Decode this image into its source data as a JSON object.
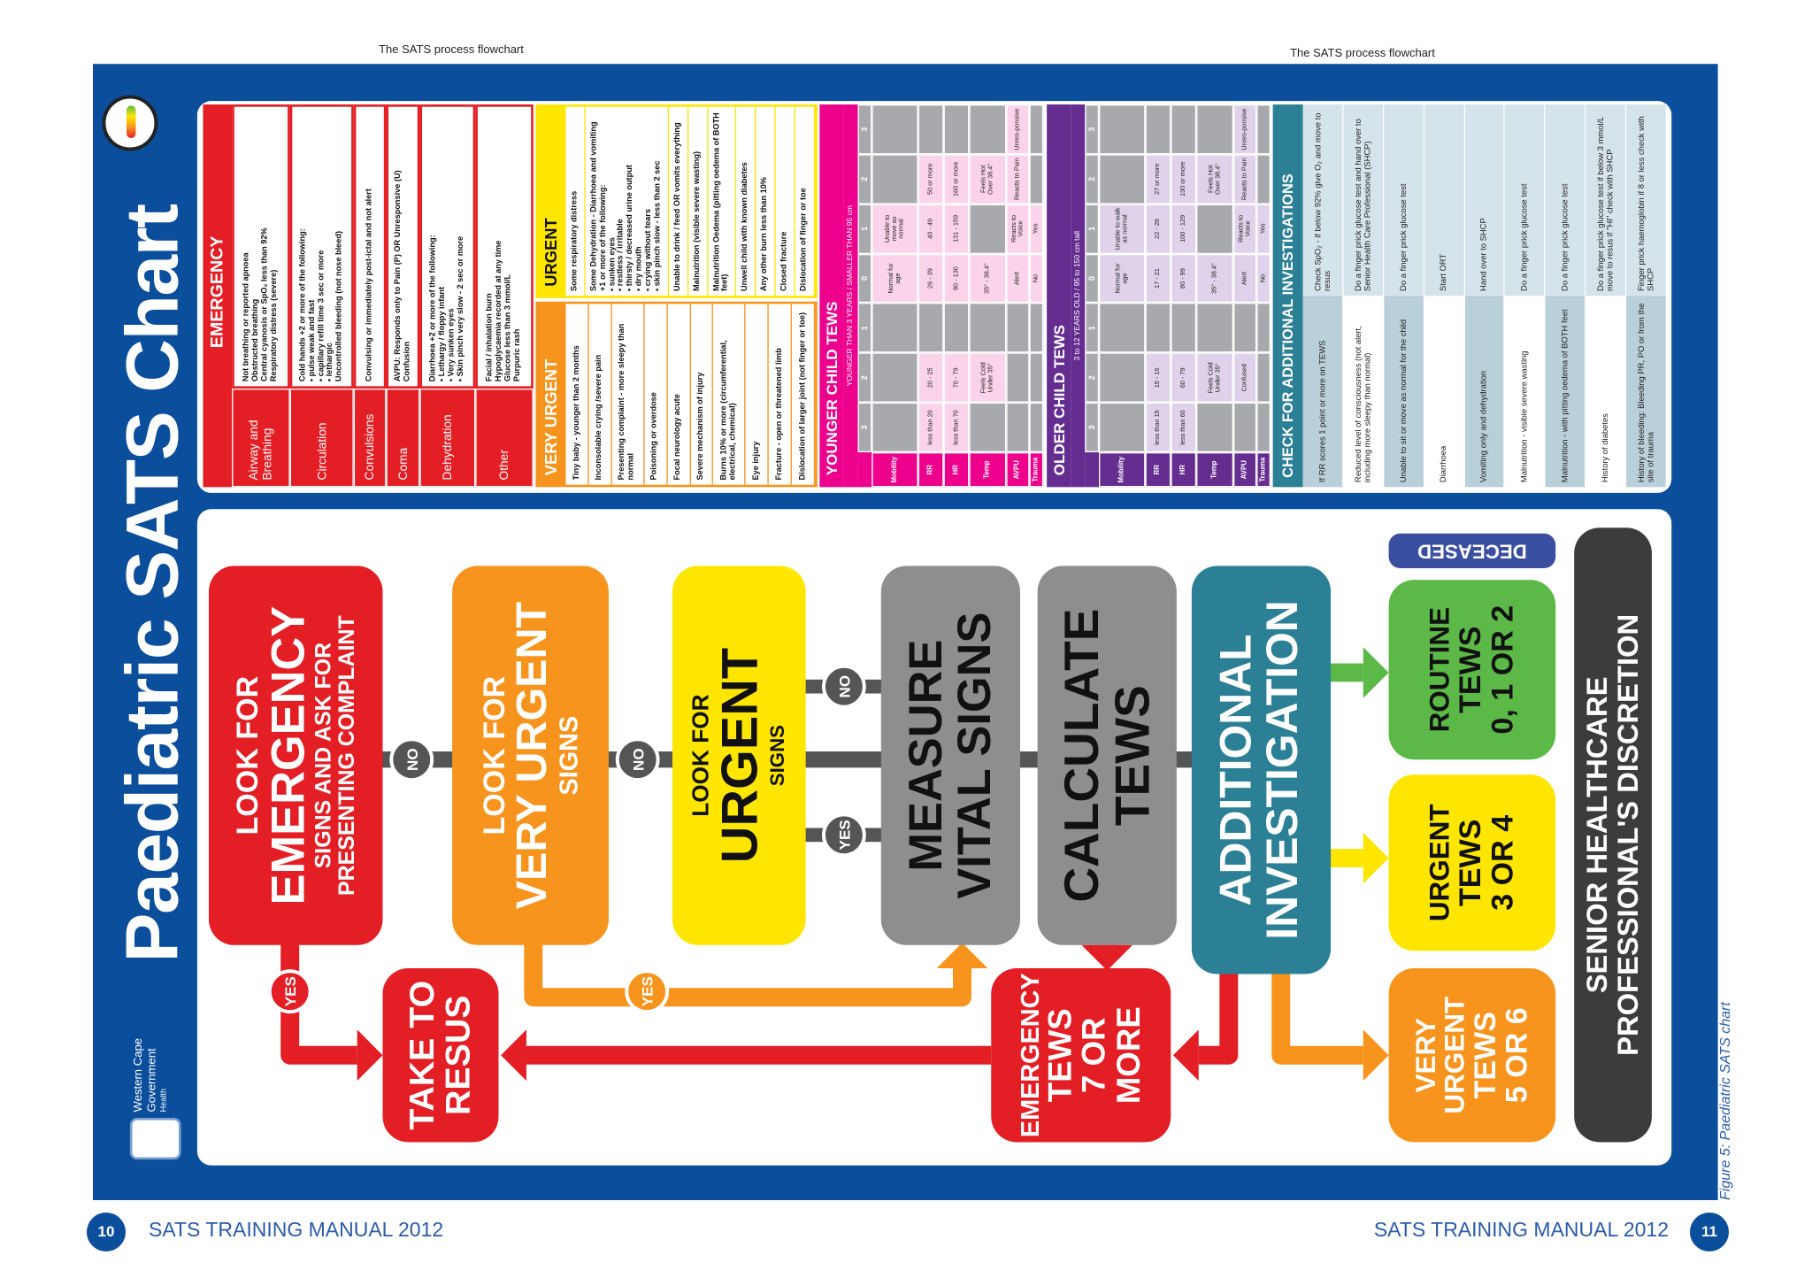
{
  "header": {
    "left": "The SATS process flowchart",
    "right": "The SATS process flowchart"
  },
  "footer": {
    "left_page": "10",
    "left_text": "SATS TRAINING MANUAL 2012",
    "right_text": "SATS TRAINING MANUAL 2012",
    "right_page": "11",
    "caption": "Figure 5: Paediatric SATS chart"
  },
  "poster": {
    "title": "Paediatric SATS Chart",
    "logo": [
      "Western Cape",
      "Government",
      "Health"
    ],
    "emergency": {
      "heading": "EMERGENCY",
      "rows": [
        {
          "label": "Airway and Breathing",
          "items": [
            "Not breathing or reported apnoea",
            "Obstructed breathing",
            "Central cyanosis or SpO₂ less than 92%",
            "Respiratory distress (severe)"
          ]
        },
        {
          "label": "Circulation",
          "items": [
            "Cold hands +2 or more of the following:",
            "• pulse weak and fast",
            "• capillary refill time 3 sec or more",
            "• lethargic",
            "Uncontrolled bleeding (not nose bleed)"
          ]
        },
        {
          "label": "Convulsions",
          "items": [
            "Convulsing or immediately post-ictal and not alert"
          ]
        },
        {
          "label": "Coma",
          "items": [
            "AVPU: Responds only to Pain (P) OR Unresponsive (U)",
            "Confusion"
          ]
        },
        {
          "label": "Dehydration",
          "items": [
            "Diarrhoea +2 or more of the following:",
            "• Lethargy / floppy infant",
            "• Very sunken eyes",
            "• Skin pinch very slow - 2 sec or more"
          ]
        },
        {
          "label": "Other",
          "items": [
            "Facial / inhalation burn",
            "Hypoglycaemia recorded at any time",
            "Glucose less than 3 mmol/L",
            "Purpuric rash"
          ]
        }
      ]
    },
    "very_urgent": {
      "heading": "VERY URGENT",
      "items": [
        [
          "Tiny baby - younger than 2 months"
        ],
        [
          "Inconsolable crying /severe pain"
        ],
        [
          "Presenting complaint - more sleepy than normal"
        ],
        [
          "Poisoning or overdose"
        ],
        [
          "Focal neurology acute"
        ],
        [
          "Severe mechanism of injury"
        ],
        [
          "Burns 10% or more (circumferential, electrical, chemical)"
        ],
        [
          "Eye injury"
        ],
        [
          "Fracture - open or threatened limb"
        ],
        [
          "Dislocation of larger joint (not finger or toe)"
        ]
      ]
    },
    "urgent": {
      "heading": "URGENT",
      "items": [
        [
          "Some respiratory distress"
        ],
        [
          "Some Dehydration - Diarrhoea and vomiting +1 or more of the following:",
          "• sunken eyes",
          "• restless / irritable",
          "• thirsty / decreased urine output",
          "• dry mouth",
          "• crying without tears",
          "• skin pinch slow - less than 2 sec"
        ],
        [
          "Unable to drink / feed OR vomits everything"
        ],
        [
          "Malnutrition (visible severe wasting)"
        ],
        [
          "Malnutrition Oedema (pitting oedema of BOTH feet)"
        ],
        [
          "Unwell child with known diabetes"
        ],
        [
          "Any other burn less than 10%"
        ],
        [
          "Closed fracture"
        ],
        [
          "Dislocation of finger or toe"
        ]
      ]
    },
    "tews": [
      {
        "heading": "YOUNGER CHILD TEWS",
        "subheading": "YOUNGER THAN 3 YEARS / SMALLER THAN 95 cm",
        "scores": [
          3,
          2,
          1,
          0,
          1,
          2,
          3
        ],
        "rows": [
          {
            "label": "Mobility",
            "cells": [
              null,
              null,
              null,
              "Normal for age",
              "Unable to move as normal",
              null,
              null
            ]
          },
          {
            "label": "RR",
            "cells": [
              "less than 20",
              "20 - 25",
              null,
              "26 - 39",
              "40 - 49",
              "50 or more",
              null
            ]
          },
          {
            "label": "HR",
            "cells": [
              "less than 70",
              "70 - 79",
              null,
              "80 - 130",
              "131 - 159",
              "160 or more",
              null
            ]
          },
          {
            "label": "Temp",
            "cells": [
              null,
              "Feels Cold Under 35°",
              null,
              "35° - 38.4°",
              null,
              "Feels Hot Over 38.4°",
              null
            ]
          },
          {
            "label": "AVPU",
            "cells": [
              null,
              null,
              null,
              "Alert",
              "Reacts to Voice",
              "Reacts to Pain",
              "Unres-ponsive"
            ]
          },
          {
            "label": "Trauma",
            "cells": [
              null,
              null,
              null,
              "No",
              "Yes",
              null,
              null
            ]
          }
        ]
      },
      {
        "heading": "OLDER CHILD TEWS",
        "subheading": "3 to 12 YEARS OLD / 95 to 150 cm tall",
        "scores": [
          3,
          2,
          1,
          0,
          1,
          2,
          3
        ],
        "rows": [
          {
            "label": "Mobility",
            "cells": [
              null,
              null,
              null,
              "Normal for age",
              "Unable to walk as normal",
              null,
              null
            ]
          },
          {
            "label": "RR",
            "cells": [
              "less than 15",
              "15 - 16",
              null,
              "17 - 21",
              "22 - 26",
              "27 or more",
              null
            ]
          },
          {
            "label": "HR",
            "cells": [
              "less than 60",
              "60 - 79",
              null,
              "80 - 99",
              "100 - 129",
              "130 or more",
              null
            ]
          },
          {
            "label": "Temp",
            "cells": [
              null,
              "Feels Cold Under 35°",
              null,
              "35° - 38.4°",
              null,
              "Feels Hot Over 38.4°",
              null
            ]
          },
          {
            "label": "AVPU",
            "cells": [
              null,
              "Confused",
              null,
              "Alert",
              "Reacts to Voice",
              "Reacts to Pain",
              "Unres-ponsive"
            ]
          },
          {
            "label": "Trauma",
            "cells": [
              null,
              null,
              null,
              "No",
              "Yes",
              null,
              null
            ]
          }
        ]
      }
    ],
    "investigations": {
      "heading": "CHECK FOR ADDITIONAL INVESTIGATIONS",
      "rows": [
        {
          "condition": "If RR scores 1 point or more on TEWS",
          "action": "Check SpO₂ - if below 92% give O₂ and move to resus"
        },
        {
          "condition": "Reduced level of consciousness (not alert, including more sleepy than normal)",
          "action": "Do a finger prick glucose test and hand over to Senior Health Care Professional (SHCP)"
        },
        {
          "condition": "Unable to sit or move as normal for the child",
          "action": "Do a finger prick glucose test"
        },
        {
          "condition": "Diarrhoea",
          "action": "Start ORT"
        },
        {
          "condition": "Vomiting only and dehydration",
          "action": "Hand over to SHCP"
        },
        {
          "condition": "Malnutrition - visible severe wasting",
          "action": "Do a finger prick glucose test"
        },
        {
          "condition": "Malnutrition - with pitting oedema of BOTH feet",
          "action": "Do a finger prick glucose test"
        },
        {
          "condition": "History of diabetes",
          "action": "Do a finger prick glucose test if below 3 mmol/L move to resus if \"HI\" check with SHCP"
        },
        {
          "condition": "History of bleeding: Bleeding PR, PO or from the site of trauma",
          "action": "Finger prick haemoglobin if 8 or less check with SHCP"
        }
      ]
    },
    "flow": {
      "emergency": [
        "LOOK FOR",
        "EMERGENCY",
        "SIGNS AND ASK FOR PRESENTING COMPLAINT"
      ],
      "very_urgent": [
        "LOOK FOR",
        "VERY URGENT",
        "SIGNS"
      ],
      "urgent": [
        "LOOK FOR",
        "URGENT",
        "SIGNS"
      ],
      "measure": [
        "MEASURE",
        "VITAL SIGNS"
      ],
      "calculate": [
        "CALCULATE",
        "TEWS"
      ],
      "additional": [
        "ADDITIONAL",
        "INVESTIGATION"
      ],
      "resus": [
        "TAKE TO",
        "RESUS"
      ],
      "emergency_tews": [
        "EMERGENCY",
        "TEWS",
        "7 OR",
        "MORE"
      ],
      "routine": [
        "ROUTINE",
        "TEWS",
        "0, 1 OR 2"
      ],
      "urgent_tews": [
        "URGENT",
        "TEWS",
        "3 OR 4"
      ],
      "very_urgent_tews": [
        "VERY",
        "URGENT",
        "TEWS",
        "5 OR 6"
      ],
      "senior": [
        "SENIOR HEALTHCARE",
        "PROFESSIONAL'S DISCRETION"
      ],
      "deceased": "DECEASED",
      "connectors": [
        "NO",
        "NO",
        "NO",
        "YES",
        "YES",
        "YES"
      ]
    }
  }
}
